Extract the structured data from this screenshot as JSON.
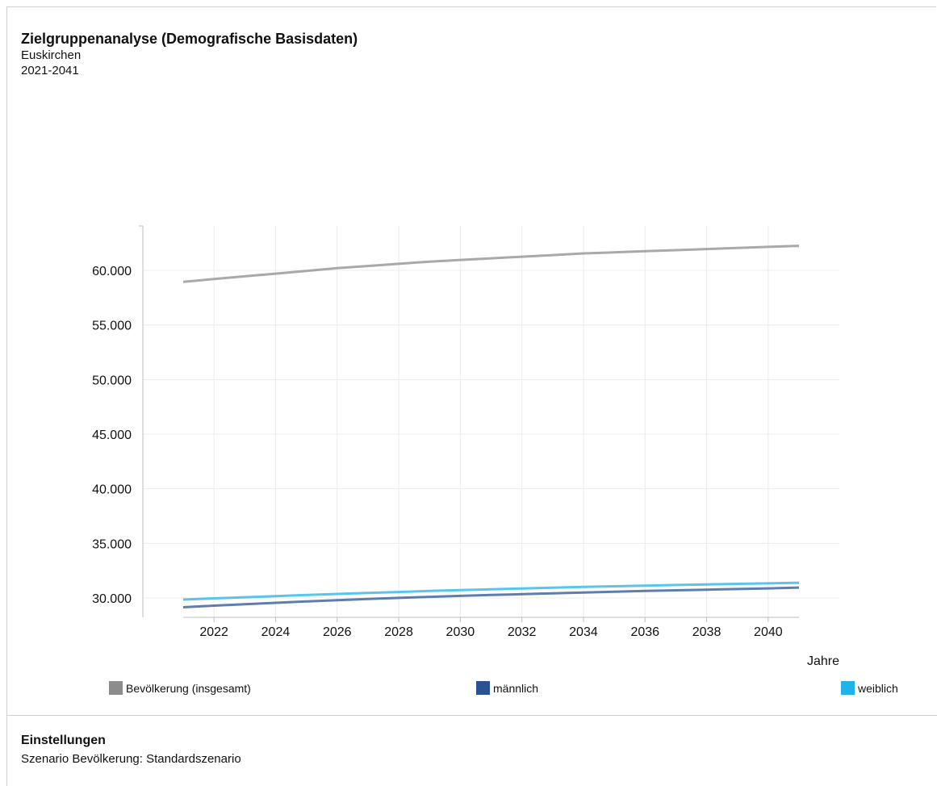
{
  "header": {
    "title": "Zielgruppenanalyse (Demografische Basisdaten)",
    "region": "Euskirchen",
    "period": "2021-2041"
  },
  "chart_data": {
    "type": "line",
    "xlabel": "Jahre",
    "ylabel": "",
    "ylim": [
      28000,
      64000
    ],
    "y_ticks": [
      30000,
      35000,
      40000,
      45000,
      50000,
      55000,
      60000
    ],
    "y_tick_labels": [
      "30.000",
      "35.000",
      "40.000",
      "45.000",
      "50.000",
      "55.000",
      "60.000"
    ],
    "xlim": [
      2021,
      2041
    ],
    "x_ticks": [
      2022,
      2024,
      2026,
      2028,
      2030,
      2032,
      2034,
      2036,
      2038,
      2040
    ],
    "x": [
      2021,
      2022,
      2023,
      2024,
      2025,
      2026,
      2027,
      2028,
      2029,
      2030,
      2031,
      2032,
      2033,
      2034,
      2035,
      2036,
      2037,
      2038,
      2039,
      2040,
      2041
    ],
    "grid": true,
    "legend_position": "bottom",
    "series": [
      {
        "name": "Bevölkerung (insgesamt)",
        "color": "#8c8c8c",
        "values": [
          58950,
          59200,
          59450,
          59700,
          59950,
          60200,
          60400,
          60600,
          60800,
          60950,
          61100,
          61250,
          61400,
          61550,
          61650,
          61750,
          61850,
          61950,
          62050,
          62150,
          62250
        ]
      },
      {
        "name": "männlich",
        "color": "#2a5293",
        "values": [
          29150,
          29300,
          29430,
          29560,
          29680,
          29800,
          29910,
          30010,
          30100,
          30190,
          30270,
          30350,
          30430,
          30500,
          30570,
          30640,
          30700,
          30760,
          30820,
          30880,
          30950
        ]
      },
      {
        "name": "weiblich",
        "color": "#1fb3ea",
        "values": [
          29850,
          29960,
          30070,
          30170,
          30270,
          30370,
          30460,
          30550,
          30640,
          30720,
          30800,
          30870,
          30940,
          31010,
          31070,
          31130,
          31190,
          31240,
          31290,
          31340,
          31400
        ]
      }
    ]
  },
  "settings": {
    "title": "Einstellungen",
    "scenario": "Szenario Bevölkerung: Standardszenario"
  }
}
